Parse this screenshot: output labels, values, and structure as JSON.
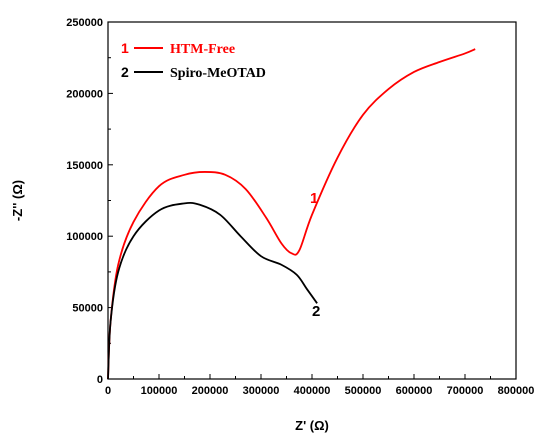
{
  "chart_data": {
    "type": "line",
    "xlabel": "Z' (Ω)",
    "ylabel": "-Z'' (Ω)",
    "xlim": [
      0,
      800000
    ],
    "ylim": [
      0,
      250000
    ],
    "x_ticks": [
      0,
      100000,
      200000,
      300000,
      400000,
      500000,
      600000,
      700000,
      800000
    ],
    "y_ticks": [
      0,
      50000,
      100000,
      150000,
      200000,
      250000
    ],
    "x_tick_labels": [
      "0",
      "100000",
      "200000",
      "300000",
      "400000",
      "500000",
      "600000",
      "700000",
      "800000"
    ],
    "y_tick_labels": [
      "0",
      "50000",
      "100000",
      "150000",
      "200000",
      "250000"
    ],
    "grid": false,
    "legend_position": "top-left",
    "series": [
      {
        "name": "HTM-Free",
        "legend_number": "1",
        "curve_label": "1",
        "color": "#ff0000",
        "x": [
          0,
          5000,
          20000,
          50000,
          100000,
          150000,
          190000,
          230000,
          270000,
          310000,
          340000,
          360000,
          375000,
          400000,
          450000,
          500000,
          550000,
          600000,
          650000,
          700000,
          720000
        ],
        "y": [
          0,
          40000,
          80000,
          110000,
          135000,
          143000,
          145000,
          143000,
          133000,
          113000,
          95000,
          88000,
          90000,
          115000,
          155000,
          185000,
          203000,
          215000,
          222000,
          228000,
          231000
        ]
      },
      {
        "name": "Spiro-MeOTAD",
        "legend_number": "2",
        "curve_label": "2",
        "color": "#000000",
        "x": [
          0,
          5000,
          20000,
          50000,
          100000,
          150000,
          180000,
          220000,
          260000,
          300000,
          340000,
          370000,
          390000,
          410000
        ],
        "y": [
          0,
          40000,
          75000,
          100000,
          118000,
          123000,
          122000,
          115000,
          100000,
          86000,
          80000,
          73000,
          63000,
          53000
        ]
      }
    ]
  }
}
